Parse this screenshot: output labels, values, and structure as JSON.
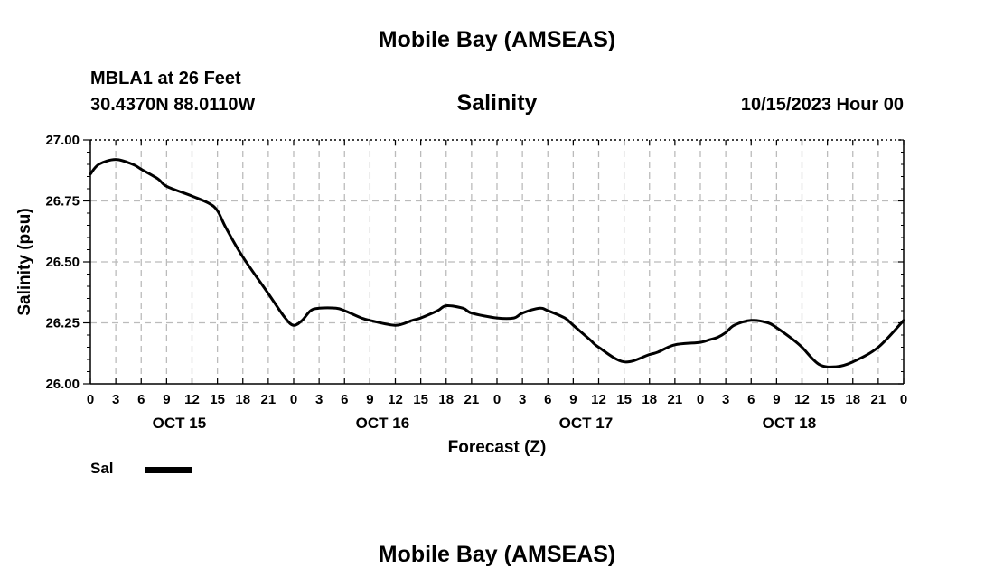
{
  "header": {
    "title": "Mobile Bay (AMSEAS)",
    "station": "MBLA1 at 26 Feet",
    "coordinates": "30.4370N  88.0110W",
    "run_time": "10/15/2023 Hour 00"
  },
  "footer": {
    "title": "Mobile Bay (AMSEAS)"
  },
  "legend": {
    "label": "Sal",
    "placement": "bottom-left"
  },
  "colors": {
    "line": "#000000",
    "grid": "#bbbbbb",
    "background": "#ffffff"
  },
  "chart_data": {
    "type": "line",
    "title": "Salinity",
    "xlabel": "Forecast (Z)",
    "ylabel": "Salinity (psu)",
    "x_unit": "forecast hour from 10/15/2023 00Z",
    "xlim": [
      0,
      96
    ],
    "ylim": [
      26.0,
      27.0
    ],
    "y_ticks": [
      "26.00",
      "26.25",
      "26.50",
      "26.75",
      "27.00"
    ],
    "x_tick_labels": [
      "0",
      "3",
      "6",
      "9",
      "12",
      "15",
      "18",
      "21",
      "0",
      "3",
      "6",
      "9",
      "12",
      "15",
      "18",
      "21",
      "0",
      "3",
      "6",
      "9",
      "12",
      "15",
      "18",
      "21",
      "0",
      "3",
      "6",
      "9",
      "12",
      "15",
      "18",
      "21",
      "0"
    ],
    "date_labels": [
      "OCT 15",
      "OCT 16",
      "OCT 17",
      "OCT 18"
    ],
    "grid": true,
    "series": [
      {
        "name": "Sal",
        "x": [
          0,
          1,
          3,
          5,
          6,
          8,
          9,
          12,
          14,
          15,
          16,
          18,
          21,
          23,
          24,
          25,
          26,
          27,
          29,
          30,
          32,
          33,
          36,
          38,
          39,
          41,
          42,
          44,
          45,
          48,
          50,
          51,
          53,
          54,
          56,
          57,
          59,
          60,
          63,
          66,
          67,
          69,
          72,
          73,
          74,
          75,
          76,
          78,
          80,
          81,
          83,
          84,
          86,
          88,
          90,
          93,
          96
        ],
        "y": [
          26.86,
          26.9,
          26.92,
          26.9,
          26.88,
          26.84,
          26.81,
          26.77,
          26.74,
          26.71,
          26.64,
          26.52,
          26.37,
          26.27,
          26.24,
          26.26,
          26.3,
          26.31,
          26.31,
          26.3,
          26.27,
          26.26,
          26.24,
          26.26,
          26.27,
          26.3,
          26.32,
          26.31,
          26.29,
          26.27,
          26.27,
          26.29,
          26.31,
          26.3,
          26.27,
          26.24,
          26.18,
          26.15,
          26.09,
          26.12,
          26.13,
          26.16,
          26.17,
          26.18,
          26.19,
          26.21,
          26.24,
          26.26,
          26.25,
          26.23,
          26.18,
          26.15,
          26.08,
          26.07,
          26.09,
          26.15,
          26.26
        ]
      }
    ]
  }
}
